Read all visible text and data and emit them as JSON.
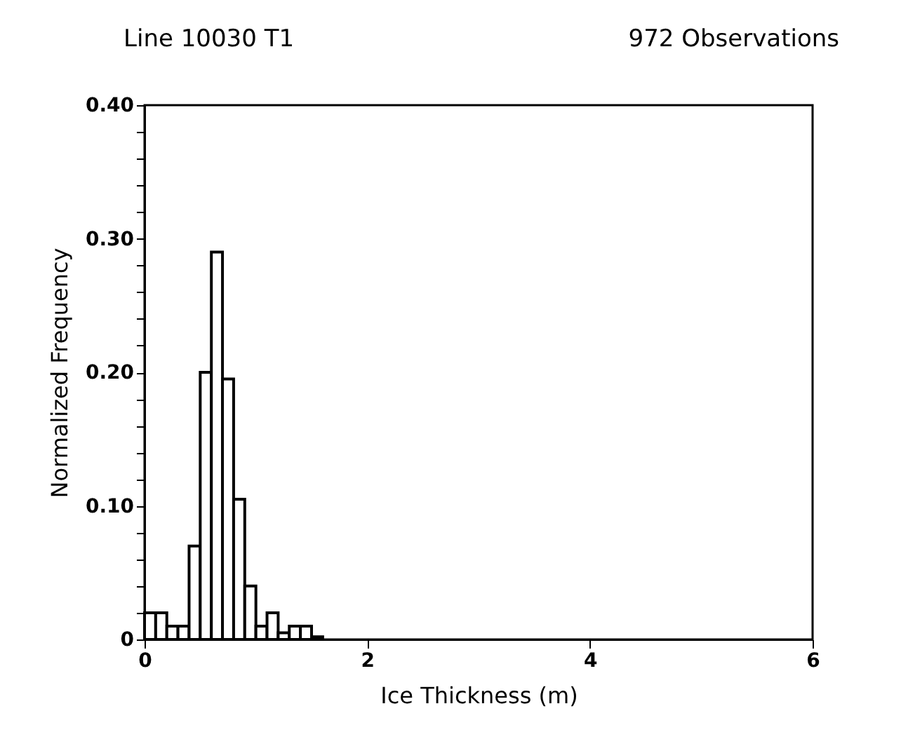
{
  "chart_data": {
    "type": "histogram",
    "title": "Line 10030 T1",
    "annotations": [
      "972 Observations"
    ],
    "xlabel": "Ice Thickness (m)",
    "ylabel": "Normalized Frequency",
    "bins": [
      0,
      0.1,
      0.2,
      0.3,
      0.4,
      0.5,
      0.6,
      0.7,
      0.8,
      0.9,
      1.0,
      1.1,
      1.2,
      1.3,
      1.4,
      1.5,
      1.6
    ],
    "values": [
      0.02,
      0.02,
      0.01,
      0.01,
      0.07,
      0.2,
      0.29,
      0.195,
      0.105,
      0.04,
      0.01,
      0.02,
      0.005,
      0.01,
      0.01,
      0.002
    ],
    "color": "#000000",
    "xlim": [
      0,
      6
    ],
    "xticks": [
      0,
      2,
      4,
      6
    ],
    "ylim": [
      0,
      0.4
    ],
    "yticks": [
      {
        "value": 0,
        "label": "0"
      },
      {
        "value": 0.02,
        "label": null
      },
      {
        "value": 0.04,
        "label": null
      },
      {
        "value": 0.06,
        "label": null
      },
      {
        "value": 0.08,
        "label": null
      },
      {
        "value": 0.1,
        "label": "0.10"
      },
      {
        "value": 0.12,
        "label": null
      },
      {
        "value": 0.14,
        "label": null
      },
      {
        "value": 0.16,
        "label": null
      },
      {
        "value": 0.18,
        "label": null
      },
      {
        "value": 0.2,
        "label": "0.20"
      },
      {
        "value": 0.22,
        "label": null
      },
      {
        "value": 0.24,
        "label": null
      },
      {
        "value": 0.26,
        "label": null
      },
      {
        "value": 0.28,
        "label": null
      },
      {
        "value": 0.3,
        "label": "0.30"
      },
      {
        "value": 0.32,
        "label": null
      },
      {
        "value": 0.34,
        "label": null
      },
      {
        "value": 0.36,
        "label": null
      },
      {
        "value": 0.38,
        "label": null
      },
      {
        "value": 0.4,
        "label": "0.40"
      }
    ],
    "grid": false
  }
}
